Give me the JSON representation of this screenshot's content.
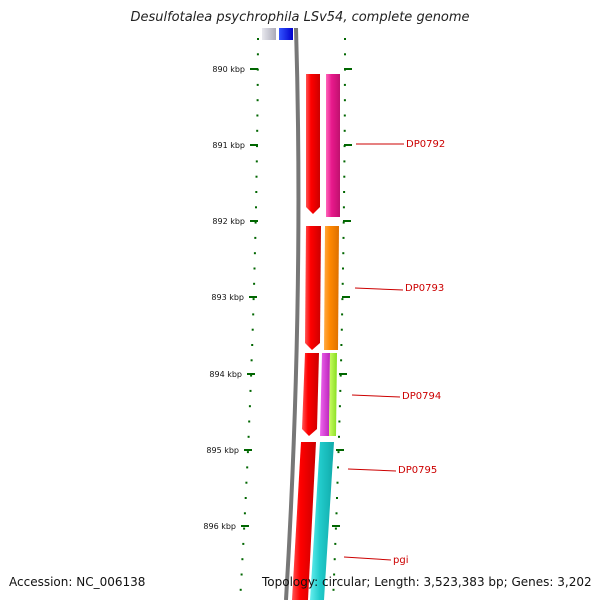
{
  "title": "Desulfotalea psychrophila LSv54, complete genome",
  "accession": "Accession: NC_006138",
  "topology": "Topology: circular; Length: 3,523,383 bp; Genes: 3,202",
  "ticks": [
    {
      "label": "890 kbp"
    },
    {
      "label": "891 kbp"
    },
    {
      "label": "892 kbp"
    },
    {
      "label": "893 kbp"
    },
    {
      "label": "894 kbp"
    },
    {
      "label": "895 kbp"
    },
    {
      "label": "896 kbp"
    }
  ],
  "genes": [
    {
      "label": "DP0792",
      "color": "#e8198c"
    },
    {
      "label": "DP0793",
      "color": "#ff8800"
    },
    {
      "label": "DP0794",
      "color": "#cc33cc"
    },
    {
      "label": "DP0795",
      "color": "#22cccc"
    },
    {
      "label": "pgi",
      "color": "#22cccc"
    }
  ],
  "colors": {
    "cds_strand": "#ff0000",
    "tick": "#006600",
    "label": "#cc0000",
    "backbone": "#777777"
  }
}
